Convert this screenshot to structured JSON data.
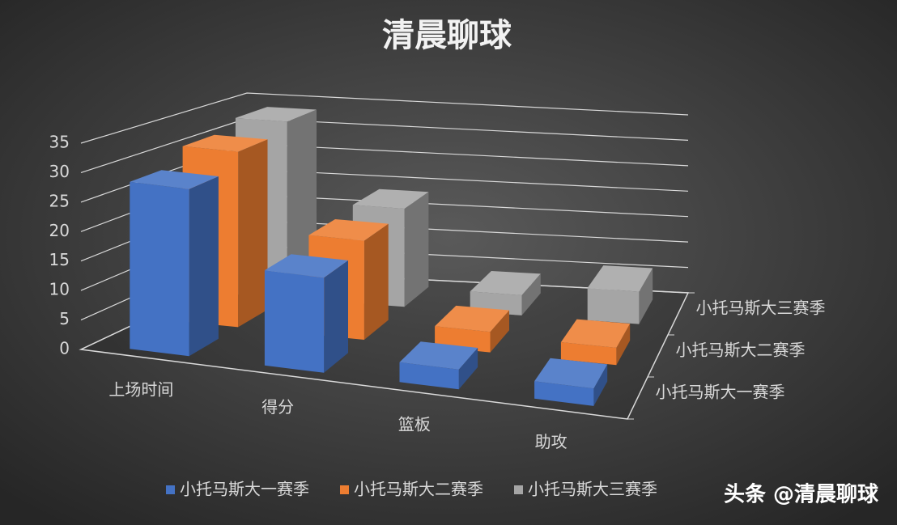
{
  "chart_data": {
    "type": "bar3d",
    "title": "清晨聊球",
    "categories": [
      "上场时间",
      "得分",
      "篮板",
      "助攻"
    ],
    "series": [
      {
        "name": "小托马斯大一赛季",
        "color": "#4472c4",
        "values": [
          28.6,
          16.3,
          3.4,
          3.0
        ]
      },
      {
        "name": "小托马斯大二赛季",
        "color": "#ed7d31",
        "values": [
          31.5,
          17.8,
          3.7,
          3.1
        ]
      },
      {
        "name": "小托马斯大三赛季",
        "color": "#a5a5a5",
        "values": [
          33.3,
          18.5,
          3.8,
          6.1
        ]
      }
    ],
    "ylim": [
      0,
      35
    ],
    "yticks": [
      0,
      5,
      10,
      15,
      20,
      25,
      30,
      35
    ],
    "grid": true,
    "legend": "bottom"
  },
  "watermark": "头条 @清晨聊球"
}
